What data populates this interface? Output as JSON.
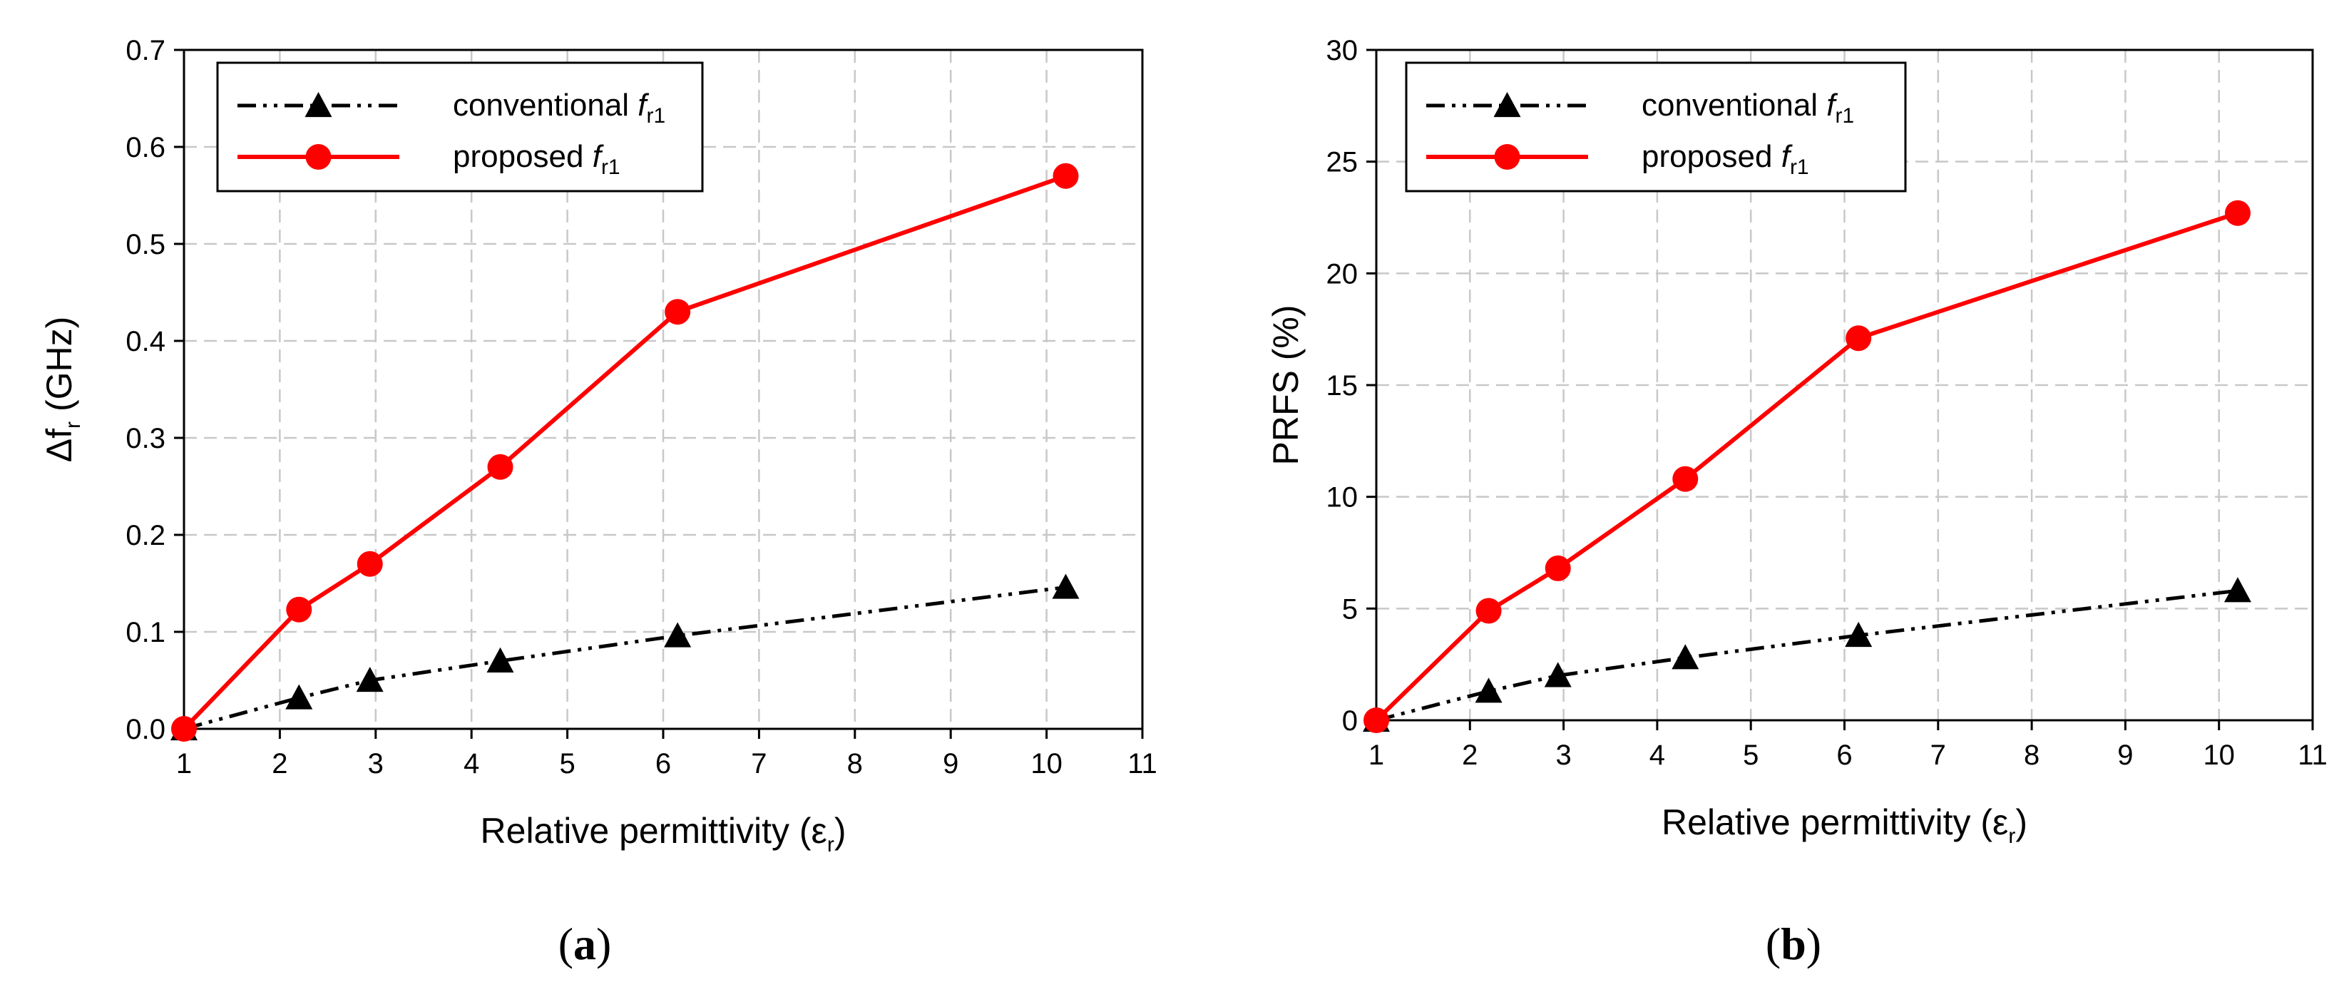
{
  "chart_data": [
    {
      "type": "line",
      "panel": "a",
      "caption_letter": "a",
      "ylabel_main": "Δf",
      "ylabel_sub": "r",
      "ylabel_unit": " (GHz)",
      "xlabel_main": "Relative permittivity (ε",
      "xlabel_sub": "r",
      "xlabel_close": ")",
      "xlim": [
        1,
        11
      ],
      "ylim": [
        0,
        0.7
      ],
      "x_ticks": [
        1,
        2,
        3,
        4,
        5,
        6,
        7,
        8,
        9,
        10,
        11
      ],
      "y_ticks": [
        "0.0",
        "0.1",
        "0.2",
        "0.3",
        "0.4",
        "0.5",
        "0.6",
        "0.7"
      ],
      "grid": true,
      "legend_position": "top-left",
      "series": [
        {
          "name": "conventional",
          "name_italic": "f",
          "name_sub": "r1",
          "color": "#000000",
          "line_style": "dash-dot-dot",
          "marker": "triangle",
          "x": [
            1,
            2.2,
            2.94,
            4.3,
            6.15,
            10.2
          ],
          "y": [
            0,
            0.032,
            0.05,
            0.07,
            0.096,
            0.146
          ]
        },
        {
          "name": "proposed",
          "name_italic": "f",
          "name_sub": "r1",
          "color": "#ff0000",
          "line_style": "solid",
          "marker": "circle",
          "x": [
            1,
            2.2,
            2.94,
            4.3,
            6.15,
            10.2
          ],
          "y": [
            0,
            0.123,
            0.17,
            0.27,
            0.43,
            0.57
          ]
        }
      ]
    },
    {
      "type": "line",
      "panel": "b",
      "caption_letter": "b",
      "ylabel_main": "PRFS (%)",
      "ylabel_sub": "",
      "ylabel_unit": "",
      "xlabel_main": "Relative permittivity (ε",
      "xlabel_sub": "r",
      "xlabel_close": ")",
      "xlim": [
        1,
        11
      ],
      "ylim": [
        0,
        30
      ],
      "x_ticks": [
        1,
        2,
        3,
        4,
        5,
        6,
        7,
        8,
        9,
        10,
        11
      ],
      "y_ticks": [
        "0",
        "5",
        "10",
        "15",
        "20",
        "25",
        "30"
      ],
      "grid": true,
      "legend_position": "top-left",
      "series": [
        {
          "name": "conventional",
          "name_italic": "f",
          "name_sub": "r1",
          "color": "#000000",
          "line_style": "dash-dot-dot",
          "marker": "triangle",
          "x": [
            1,
            2.2,
            2.94,
            4.3,
            6.15,
            10.2
          ],
          "y": [
            0,
            1.3,
            2.0,
            2.8,
            3.8,
            5.8
          ]
        },
        {
          "name": "proposed",
          "name_italic": "f",
          "name_sub": "r1",
          "color": "#ff0000",
          "line_style": "solid",
          "marker": "circle",
          "x": [
            1,
            2.2,
            2.94,
            4.3,
            6.15,
            10.2
          ],
          "y": [
            0,
            4.9,
            6.8,
            10.8,
            17.1,
            22.7
          ]
        }
      ]
    }
  ]
}
